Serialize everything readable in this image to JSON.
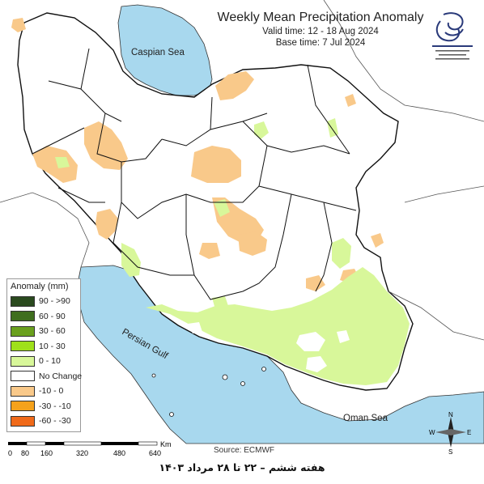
{
  "title": {
    "main": "Weekly Mean Precipitation Anomaly",
    "valid": "Valid time: 12 - 18 Aug 2024",
    "base": "Base time: 7 Jul 2024"
  },
  "water_labels": {
    "caspian": "Caspian Sea",
    "persian_gulf": "Persian Gulf",
    "oman": "Oman Sea"
  },
  "legend": {
    "title": "Anomaly (mm)",
    "items": [
      {
        "label": "90 - >90",
        "color": "#2a4a1e"
      },
      {
        "label": "60 - 90",
        "color": "#3f6e1e"
      },
      {
        "label": "30 - 60",
        "color": "#6aa01e"
      },
      {
        "label": "10 - 30",
        "color": "#9fe01a"
      },
      {
        "label": "0 - 10",
        "color": "#d8f79a"
      },
      {
        "label": "No Change",
        "color": "#ffffff"
      },
      {
        "label": "-10 - 0",
        "color": "#f9c98a"
      },
      {
        "label": "-30 - -10",
        "color": "#f5a21b"
      },
      {
        "label": "-60 - -30",
        "color": "#f06a1a"
      }
    ]
  },
  "scale": {
    "ticks": [
      "0",
      "80",
      "160",
      "320",
      "480",
      "640"
    ],
    "unit": "Km"
  },
  "source": "Source: ECMWF",
  "footer": "هفته ششم – ۲۲ تا ۲۸ مرداد ۱۴۰۳",
  "compass": {
    "n": "N",
    "s": "S",
    "e": "E",
    "w": "W"
  },
  "colors": {
    "water": "#a8d8ee",
    "light_green": "#d8f79a",
    "light_orange": "#f9c98a",
    "border": "#111111"
  }
}
